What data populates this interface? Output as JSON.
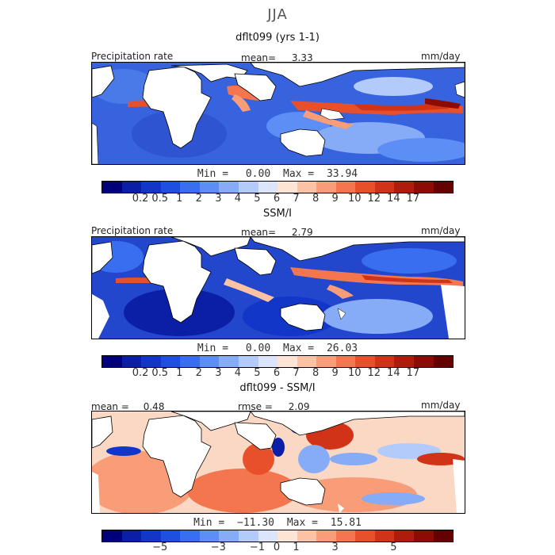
{
  "figure_title": "JJA",
  "panels": [
    {
      "title": "dflt099 (yrs 1-1)",
      "header_left": "Precipitation rate",
      "header_mid_label": "mean=",
      "header_mid_value": "3.33",
      "header_right": "mm/day",
      "min_label": "Min =",
      "min_value": "0.00",
      "max_label": "Max =",
      "max_value": "33.94"
    },
    {
      "title": "SSM/I",
      "header_left": "Precipitation rate",
      "header_mid_label": "mean=",
      "header_mid_value": "2.79",
      "header_right": "mm/day",
      "min_label": "Min =",
      "min_value": "0.00",
      "max_label": "Max =",
      "max_value": "26.03"
    },
    {
      "title": "dflt099 - SSM/I",
      "header_left_label": "mean =",
      "header_left_value": "0.48",
      "header_mid_label": "rmse =",
      "header_mid_value": "2.09",
      "header_right": "mm/day",
      "min_label": "Min =",
      "min_value": "−11.30",
      "max_label": "Max =",
      "max_value": "15.81"
    }
  ],
  "colorbar_precip": {
    "colors": [
      "#00007a",
      "#0a1fa6",
      "#1236c8",
      "#1f4fe0",
      "#3a6ef0",
      "#5c8ef5",
      "#86acf8",
      "#b3cbfb",
      "#dbe6fd",
      "#fde4d4",
      "#fbc2a4",
      "#f89d78",
      "#f4764e",
      "#e8502c",
      "#d03318",
      "#b01c0c",
      "#8c0c04",
      "#650000"
    ],
    "tick_labels": [
      "0.2",
      "0.5",
      "1",
      "2",
      "3",
      "4",
      "5",
      "6",
      "7",
      "8",
      "9",
      "10",
      "12",
      "14",
      "17"
    ]
  },
  "colorbar_diff": {
    "colors": [
      "#00007a",
      "#0a1fa6",
      "#1236c8",
      "#1f4fe0",
      "#3a6ef0",
      "#5c8ef5",
      "#86acf8",
      "#b3cbfb",
      "#dbe6fd",
      "#fde4d4",
      "#fbc2a4",
      "#f89d78",
      "#f4764e",
      "#e8502c",
      "#d03318",
      "#b01c0c",
      "#8c0c04",
      "#650000"
    ],
    "tick_labels": [
      "−5",
      "−3",
      "−1",
      "0",
      "1",
      "3",
      "5"
    ]
  }
}
